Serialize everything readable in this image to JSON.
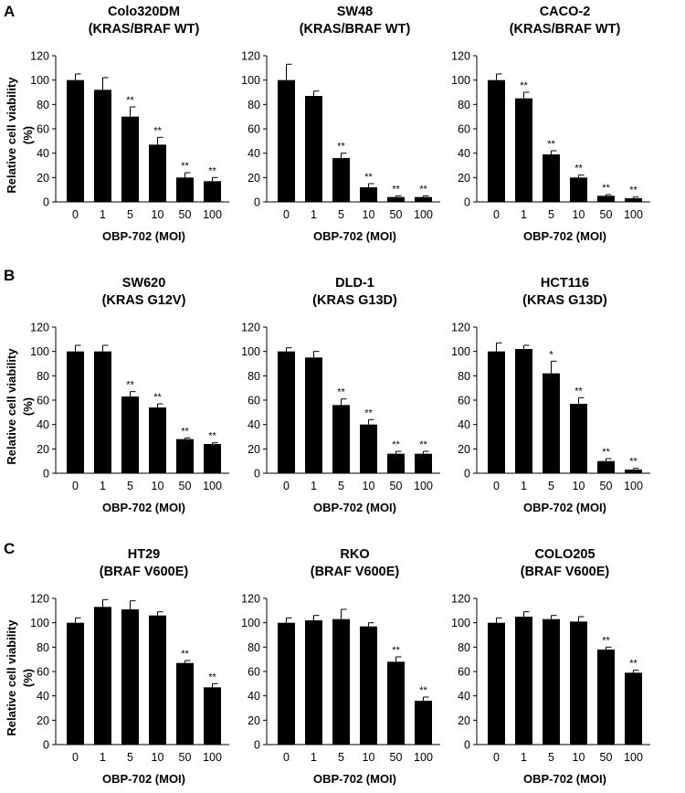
{
  "panels": [
    {
      "letter": "A"
    },
    {
      "letter": "B"
    },
    {
      "letter": "C"
    }
  ],
  "ylabel_lines": [
    "Relative cell viability",
    "(%)"
  ],
  "chart_data": [
    {
      "type": "bar",
      "title": [
        "Colo320DM",
        "(KRAS/BRAF WT)"
      ],
      "categories": [
        "0",
        "1",
        "5",
        "10",
        "50",
        "100"
      ],
      "values": [
        100,
        92,
        70,
        47,
        20,
        17
      ],
      "errors": [
        5,
        10,
        8,
        6,
        4,
        3
      ],
      "significance": [
        "",
        "",
        "**",
        "**",
        "**",
        "**"
      ],
      "xlabel": "OBP-702 (MOI)",
      "ylabel": "Relative cell viability (%)",
      "ylim": [
        0,
        120
      ],
      "yticks": [
        0,
        20,
        40,
        60,
        80,
        100,
        120
      ]
    },
    {
      "type": "bar",
      "title": [
        "SW48",
        "(KRAS/BRAF WT)"
      ],
      "categories": [
        "0",
        "1",
        "5",
        "10",
        "50",
        "100"
      ],
      "values": [
        100,
        87,
        36,
        12,
        4,
        4
      ],
      "errors": [
        13,
        4,
        4,
        3,
        1,
        1
      ],
      "significance": [
        "",
        "",
        "**",
        "**",
        "**",
        "**"
      ],
      "xlabel": "OBP-702 (MOI)",
      "ylabel": "Relative cell viability (%)",
      "ylim": [
        0,
        120
      ],
      "yticks": [
        0,
        20,
        40,
        60,
        80,
        100,
        120
      ]
    },
    {
      "type": "bar",
      "title": [
        "CACO-2",
        "(KRAS/BRAF WT)"
      ],
      "categories": [
        "0",
        "1",
        "5",
        "10",
        "50",
        "100"
      ],
      "values": [
        100,
        85,
        39,
        20,
        5,
        3
      ],
      "errors": [
        5,
        5,
        3,
        2,
        1,
        1
      ],
      "significance": [
        "",
        "**",
        "**",
        "**",
        "**",
        "**"
      ],
      "xlabel": "OBP-702 (MOI)",
      "ylabel": "Relative cell viability (%)",
      "ylim": [
        0,
        120
      ],
      "yticks": [
        0,
        20,
        40,
        60,
        80,
        100,
        120
      ]
    },
    {
      "type": "bar",
      "title": [
        "SW620",
        "(KRAS G12V)"
      ],
      "categories": [
        "0",
        "1",
        "5",
        "10",
        "50",
        "100"
      ],
      "values": [
        100,
        100,
        63,
        54,
        28,
        24
      ],
      "errors": [
        5,
        5,
        4,
        3,
        1,
        1
      ],
      "significance": [
        "",
        "",
        "**",
        "**",
        "**",
        "**"
      ],
      "xlabel": "OBP-702 (MOI)",
      "ylabel": "Relative cell viability (%)",
      "ylim": [
        0,
        120
      ],
      "yticks": [
        0,
        20,
        40,
        60,
        80,
        100,
        120
      ]
    },
    {
      "type": "bar",
      "title": [
        "DLD-1",
        "(KRAS G13D)"
      ],
      "categories": [
        "0",
        "1",
        "5",
        "10",
        "50",
        "100"
      ],
      "values": [
        100,
        95,
        56,
        40,
        16,
        16
      ],
      "errors": [
        3,
        5,
        5,
        4,
        2,
        2
      ],
      "significance": [
        "",
        "",
        "**",
        "**",
        "**",
        "**"
      ],
      "xlabel": "OBP-702 (MOI)",
      "ylabel": "Relative cell viability (%)",
      "ylim": [
        0,
        120
      ],
      "yticks": [
        0,
        20,
        40,
        60,
        80,
        100,
        120
      ]
    },
    {
      "type": "bar",
      "title": [
        "HCT116",
        "(KRAS G13D)"
      ],
      "categories": [
        "0",
        "1",
        "5",
        "10",
        "50",
        "100"
      ],
      "values": [
        100,
        102,
        82,
        57,
        10,
        3
      ],
      "errors": [
        7,
        3,
        10,
        5,
        2,
        1
      ],
      "significance": [
        "",
        "",
        "*",
        "**",
        "**",
        "**"
      ],
      "xlabel": "OBP-702 (MOI)",
      "ylabel": "Relative cell viability (%)",
      "ylim": [
        0,
        120
      ],
      "yticks": [
        0,
        20,
        40,
        60,
        80,
        100,
        120
      ]
    },
    {
      "type": "bar",
      "title": [
        "HT29",
        "(BRAF V600E)"
      ],
      "categories": [
        "0",
        "1",
        "5",
        "10",
        "50",
        "100"
      ],
      "values": [
        100,
        113,
        111,
        106,
        67,
        47
      ],
      "errors": [
        4,
        6,
        7,
        3,
        2,
        3
      ],
      "significance": [
        "",
        "",
        "",
        "",
        "**",
        "**"
      ],
      "xlabel": "OBP-702 (MOI)",
      "ylabel": "Relative cell viability (%)",
      "ylim": [
        0,
        120
      ],
      "yticks": [
        0,
        20,
        40,
        60,
        80,
        100,
        120
      ]
    },
    {
      "type": "bar",
      "title": [
        "RKO",
        "(BRAF V600E)"
      ],
      "categories": [
        "0",
        "1",
        "5",
        "10",
        "50",
        "100"
      ],
      "values": [
        100,
        102,
        103,
        97,
        68,
        36
      ],
      "errors": [
        4,
        4,
        8,
        3,
        4,
        3
      ],
      "significance": [
        "",
        "",
        "",
        "",
        "**",
        "**"
      ],
      "xlabel": "OBP-702 (MOI)",
      "ylabel": "Relative cell viability (%)",
      "ylim": [
        0,
        120
      ],
      "yticks": [
        0,
        20,
        40,
        60,
        80,
        100,
        120
      ]
    },
    {
      "type": "bar",
      "title": [
        "COLO205",
        "(BRAF V600E)"
      ],
      "categories": [
        "0",
        "1",
        "5",
        "10",
        "50",
        "100"
      ],
      "values": [
        100,
        105,
        103,
        101,
        78,
        59
      ],
      "errors": [
        4,
        4,
        3,
        4,
        2,
        2
      ],
      "significance": [
        "",
        "",
        "",
        "",
        "**",
        "**"
      ],
      "xlabel": "OBP-702 (MOI)",
      "ylabel": "Relative cell viability (%)",
      "ylim": [
        0,
        120
      ],
      "yticks": [
        0,
        20,
        40,
        60,
        80,
        100,
        120
      ]
    }
  ]
}
